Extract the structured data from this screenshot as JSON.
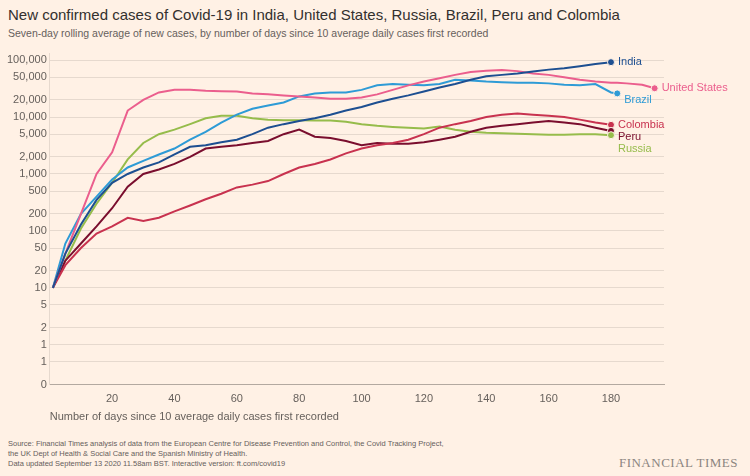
{
  "chart_data": {
    "type": "line",
    "title": "New confirmed cases of Covid-19 in India, United States, Russia, Brazil, Peru and Colombia",
    "subtitle": "Seven-day rolling average of new cases, by number of days since 10 average daily cases first recorded",
    "x_label": "Number of days since 10 average daily cases first recorded",
    "source": [
      "Source: Financial Times analysis of data from the European Centre for Disease Prevention and Control, the Covid Tracking Project,",
      "the UK Dept of Health & Social Care and the Spanish Ministry of Health.",
      "Data updated September 13 2020 11.58am BST. Interactive version: ft.com/covid19"
    ],
    "credit": "FINANCIAL TIMES",
    "log": "y",
    "grid": true,
    "x": [
      1,
      5,
      10,
      15,
      20,
      25,
      30,
      35,
      40,
      45,
      50,
      55,
      60,
      65,
      70,
      75,
      80,
      85,
      90,
      95,
      100,
      105,
      110,
      115,
      120,
      125,
      130,
      135,
      140,
      145,
      150,
      155,
      160,
      165,
      170,
      175,
      180,
      182,
      185,
      190,
      194
    ],
    "xlim": [
      0,
      197
    ],
    "xticks": [
      20,
      40,
      60,
      80,
      100,
      120,
      140,
      160,
      180
    ],
    "ylim": [
      0.2,
      130000
    ],
    "yticks": [
      {
        "value": 0.2,
        "label": "0"
      },
      {
        "value": 0.5,
        "label": "1"
      },
      1,
      2,
      5,
      10,
      20,
      50,
      100,
      200,
      500,
      {
        "value": 1000,
        "label": "1,000"
      },
      {
        "value": 2000,
        "label": "2,000"
      },
      {
        "value": 5000,
        "label": "5,000"
      },
      {
        "value": 10000,
        "label": "10,000"
      },
      {
        "value": 20000,
        "label": "20,000"
      },
      {
        "value": 50000,
        "label": "50,000"
      },
      {
        "value": 100000,
        "label": "100,000"
      }
    ],
    "series": [
      {
        "name": "India",
        "color": "#1d4f91",
        "marker": "circle",
        "values": [
          10,
          40,
          130,
          350,
          700,
          1000,
          1300,
          1600,
          2200,
          3000,
          3200,
          3600,
          4000,
          5000,
          6500,
          7500,
          8500,
          9500,
          11000,
          13000,
          15000,
          18000,
          21000,
          24000,
          28000,
          33000,
          38000,
          45000,
          52000,
          55000,
          58000,
          63000,
          68000,
          72000,
          78000,
          85000,
          92000,
          null,
          null,
          null,
          null
        ]
      },
      {
        "name": "United States",
        "color": "#eb5e8d",
        "marker": "circle",
        "values": [
          10,
          40,
          200,
          1000,
          2400,
          13000,
          20000,
          27000,
          30000,
          30000,
          29000,
          28500,
          28000,
          26000,
          25000,
          24000,
          23000,
          22000,
          21000,
          21000,
          22000,
          25000,
          30000,
          36000,
          42000,
          48000,
          55000,
          62000,
          65000,
          67000,
          64000,
          58000,
          55000,
          50000,
          45000,
          42000,
          40000,
          40000,
          39000,
          37000,
          32000
        ]
      },
      {
        "name": "Brazil",
        "color": "#2e9bd6",
        "marker": "circle",
        "values": [
          10,
          60,
          200,
          400,
          800,
          1300,
          1700,
          2200,
          2800,
          4000,
          5500,
          8000,
          11000,
          14000,
          16000,
          18000,
          23000,
          26000,
          27000,
          27000,
          30000,
          36000,
          38000,
          37000,
          36000,
          38000,
          45000,
          44000,
          42000,
          41000,
          40000,
          40000,
          39000,
          37000,
          36000,
          38000,
          27000,
          26000,
          null,
          null,
          null
        ]
      },
      {
        "name": "Colombia",
        "color": "#c8324f",
        "marker": "circle",
        "values": [
          10,
          25,
          50,
          90,
          120,
          170,
          150,
          170,
          220,
          280,
          360,
          450,
          580,
          650,
          750,
          1000,
          1300,
          1500,
          1800,
          2300,
          2800,
          3200,
          3500,
          4000,
          5000,
          6500,
          7500,
          8500,
          10000,
          11000,
          11500,
          11000,
          10500,
          10000,
          9000,
          8000,
          7300,
          null,
          null,
          null,
          null
        ]
      },
      {
        "name": "Peru",
        "color": "#7a0e2e",
        "marker": "circle",
        "values": [
          10,
          30,
          60,
          120,
          250,
          600,
          1000,
          1200,
          1500,
          2000,
          2800,
          3000,
          3200,
          3500,
          3800,
          5000,
          6000,
          4500,
          4300,
          3800,
          3200,
          3500,
          3400,
          3400,
          3600,
          4000,
          4500,
          5500,
          6500,
          7000,
          7500,
          8000,
          8500,
          8000,
          7500,
          6500,
          5700,
          null,
          null,
          null,
          null
        ]
      },
      {
        "name": "Russia",
        "color": "#96bc4b",
        "marker": "circle",
        "values": [
          10,
          30,
          110,
          300,
          700,
          1800,
          3500,
          5000,
          6000,
          7500,
          9500,
          10500,
          10500,
          9500,
          9000,
          8800,
          8800,
          8700,
          8700,
          8300,
          7500,
          7000,
          6700,
          6500,
          6300,
          6800,
          6000,
          5500,
          5300,
          5200,
          5100,
          5000,
          4900,
          4900,
          5000,
          5000,
          4800,
          null,
          null,
          null,
          null
        ]
      }
    ]
  }
}
